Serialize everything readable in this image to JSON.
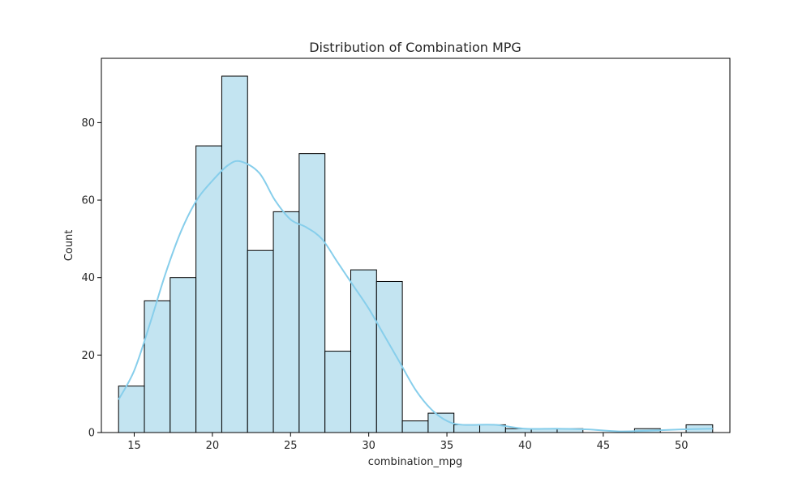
{
  "chart_data": {
    "type": "bar",
    "subtype": "histogram-with-kde",
    "title": "Distribution of Combination MPG",
    "xlabel": "combination_mpg",
    "ylabel": "Count",
    "xlim": [
      12.9,
      53.1
    ],
    "ylim": [
      0,
      96.6
    ],
    "xticks": [
      15,
      20,
      25,
      30,
      35,
      40,
      45,
      50
    ],
    "yticks": [
      0,
      20,
      40,
      60,
      80
    ],
    "grid": false,
    "legend": "none",
    "bars": {
      "bin_edges": [
        14.0,
        15.65,
        17.3,
        18.95,
        20.6,
        22.25,
        23.9,
        25.55,
        27.2,
        28.85,
        30.5,
        32.15,
        33.8,
        35.45,
        37.1,
        38.75,
        40.4,
        42.05,
        43.7,
        45.35,
        47.0,
        48.65,
        50.3,
        52.0
      ],
      "counts": [
        12,
        34,
        40,
        74,
        92,
        47,
        57,
        72,
        21,
        42,
        39,
        3,
        5,
        2,
        2,
        1,
        1,
        1,
        0,
        0,
        1,
        0,
        2
      ]
    },
    "kde": {
      "x": [
        14,
        15,
        16,
        17,
        18,
        19,
        20,
        21,
        21.8,
        23,
        24,
        25,
        26,
        27,
        28,
        29,
        30,
        31,
        32,
        33,
        34,
        35,
        36,
        38,
        40,
        42,
        44,
        46,
        48,
        50,
        52
      ],
      "y": [
        8.5,
        16,
        28,
        41,
        52,
        60,
        65,
        69,
        70,
        67,
        60,
        55,
        53,
        50,
        44,
        38,
        32,
        25,
        18,
        11,
        6,
        3,
        2,
        2,
        1,
        1,
        0.8,
        0.3,
        0.5,
        0.8,
        1
      ]
    },
    "colors": {
      "bar_fill": "#c3e4f1",
      "bar_edge": "#000000",
      "kde_line": "#87ceeb"
    }
  }
}
